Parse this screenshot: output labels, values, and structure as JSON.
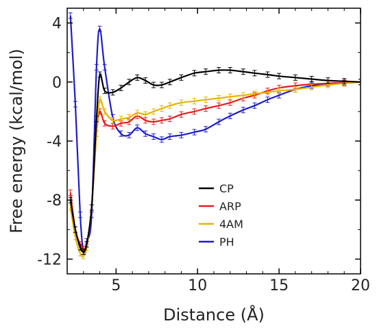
{
  "chart_data": {
    "type": "line",
    "title": "",
    "xlabel": "Distance (Å)",
    "ylabel": "Free energy (kcal/mol)",
    "xlim": [
      2,
      20
    ],
    "ylim": [
      -13,
      5
    ],
    "xticks": [
      5,
      10,
      15,
      20
    ],
    "yticks": [
      4,
      0,
      -4,
      -8,
      -12
    ],
    "xtick_labels": [
      "5",
      "10",
      "15",
      "20"
    ],
    "ytick_labels": [
      "4",
      "0",
      "-4",
      "-8",
      "-12"
    ],
    "grid": false,
    "legend_position": "bottom-center",
    "series": [
      {
        "name": "CP",
        "color": "#000000",
        "x": [
          2.2,
          2.5,
          2.8,
          3.0,
          3.2,
          3.5,
          3.8,
          4.0,
          4.3,
          4.8,
          5.3,
          5.8,
          6.3,
          6.8,
          7.3,
          7.8,
          8.3,
          9.0,
          9.8,
          10.5,
          11.3,
          12.0,
          12.8,
          13.5,
          14.3,
          15.0,
          16.0,
          17.0,
          18.0,
          19.0,
          20.0
        ],
        "y": [
          -8.0,
          -10.0,
          -11.2,
          -11.5,
          -11.0,
          -8.5,
          -2.5,
          0.5,
          -0.6,
          -0.7,
          -0.4,
          0.0,
          0.3,
          0.1,
          -0.2,
          -0.2,
          0.0,
          0.3,
          0.6,
          0.7,
          0.8,
          0.8,
          0.7,
          0.6,
          0.5,
          0.4,
          0.3,
          0.2,
          0.1,
          0.05,
          0.0
        ]
      },
      {
        "name": "ARP",
        "color": "#e81a1a",
        "x": [
          2.2,
          2.5,
          2.8,
          3.0,
          3.2,
          3.5,
          3.8,
          4.0,
          4.3,
          4.8,
          5.3,
          5.8,
          6.3,
          6.8,
          7.3,
          7.8,
          8.3,
          9.0,
          9.8,
          10.5,
          11.3,
          12.0,
          12.8,
          13.5,
          14.3,
          15.0,
          16.0,
          17.0,
          18.0,
          19.0,
          20.0
        ],
        "y": [
          -7.5,
          -10.0,
          -11.0,
          -11.3,
          -11.0,
          -8.5,
          -3.5,
          -2.0,
          -2.8,
          -3.0,
          -2.8,
          -2.7,
          -2.3,
          -2.6,
          -2.7,
          -2.6,
          -2.5,
          -2.2,
          -2.0,
          -1.8,
          -1.6,
          -1.4,
          -1.1,
          -0.9,
          -0.6,
          -0.4,
          -0.25,
          -0.15,
          -0.1,
          -0.05,
          0.0
        ]
      },
      {
        "name": "4AM",
        "color": "#e6b400",
        "x": [
          2.2,
          2.5,
          2.8,
          3.0,
          3.2,
          3.5,
          3.8,
          4.0,
          4.3,
          4.8,
          5.3,
          5.8,
          6.3,
          6.8,
          7.3,
          7.8,
          8.3,
          9.0,
          9.8,
          10.5,
          11.3,
          12.0,
          12.8,
          13.5,
          14.3,
          15.0,
          16.0,
          17.0,
          18.0,
          19.0,
          20.0
        ],
        "y": [
          -8.5,
          -10.5,
          -11.6,
          -11.8,
          -11.2,
          -8.5,
          -3.5,
          -1.2,
          -2.0,
          -2.6,
          -2.5,
          -2.4,
          -2.1,
          -2.2,
          -2.0,
          -1.8,
          -1.6,
          -1.4,
          -1.3,
          -1.2,
          -1.1,
          -1.0,
          -0.9,
          -0.8,
          -0.7,
          -0.6,
          -0.5,
          -0.35,
          -0.2,
          -0.1,
          0.0
        ]
      },
      {
        "name": "PH",
        "color": "#1c1ccc",
        "x": [
          2.2,
          2.5,
          2.8,
          3.0,
          3.2,
          3.5,
          3.8,
          4.0,
          4.3,
          4.8,
          5.3,
          5.8,
          6.3,
          6.8,
          7.3,
          7.8,
          8.3,
          9.0,
          9.8,
          10.5,
          11.3,
          12.0,
          12.8,
          13.5,
          14.3,
          15.0,
          16.0,
          17.0,
          18.0,
          19.0,
          20.0
        ],
        "y": [
          4.5,
          -1.5,
          -9.0,
          -11.5,
          -10.8,
          -9.0,
          1.0,
          3.6,
          1.0,
          -2.4,
          -3.5,
          -3.6,
          -3.1,
          -3.5,
          -3.7,
          -3.9,
          -3.7,
          -3.6,
          -3.4,
          -3.2,
          -2.7,
          -2.3,
          -1.9,
          -1.6,
          -1.2,
          -0.9,
          -0.5,
          -0.25,
          -0.1,
          -0.05,
          0.0
        ]
      }
    ]
  }
}
